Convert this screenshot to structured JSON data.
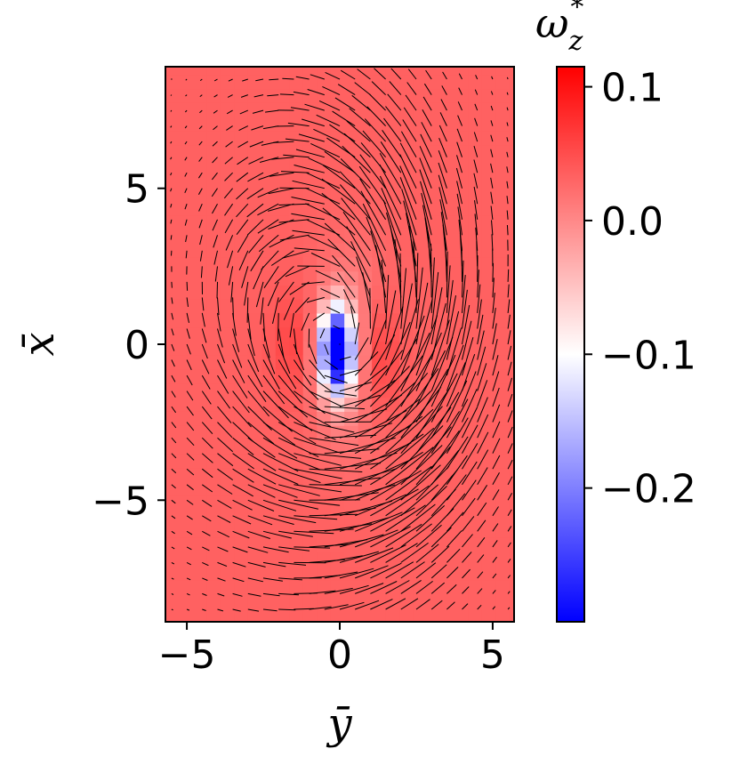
{
  "chart_data": {
    "type": "heatmap",
    "title": "",
    "xlabel": "ȳ",
    "ylabel": "x̄",
    "xlim": [
      -5.7,
      5.7
    ],
    "ylim": [
      -8.9,
      8.9
    ],
    "xticks": [
      -5,
      0,
      5
    ],
    "xtick_labels": [
      "−5",
      "0",
      "5"
    ],
    "yticks": [
      5,
      0,
      -5
    ],
    "ytick_labels": [
      "5",
      "0",
      "−5"
    ],
    "grid": false,
    "colorbar": {
      "label_symbol": "ω",
      "label_sub": "z",
      "label_sup": "*",
      "vmin": -0.3,
      "vmax": 0.115,
      "ticks": [
        0.1,
        0.0,
        -0.1,
        -0.2
      ],
      "tick_labels": [
        "0.1",
        "0.0",
        "−0.1",
        "−0.2"
      ],
      "colormap": [
        "#0000ff",
        "#ffffff",
        "#ff0000"
      ],
      "colormap_center": -0.1
    },
    "background_value": 0.033,
    "vortex_features": [
      {
        "name": "negative core",
        "y": -0.1,
        "x": -0.2,
        "sy": 0.35,
        "sx": 0.9,
        "value": -0.36
      },
      {
        "name": "positive lobe right",
        "y": 1.2,
        "x": -0.4,
        "sy": 0.55,
        "sx": 1.4,
        "value": 0.09
      },
      {
        "name": "positive lobe left",
        "y": -1.5,
        "x": 0.0,
        "sy": 0.5,
        "sx": 1.2,
        "value": 0.06
      },
      {
        "name": "white ring",
        "y": 0.5,
        "x": -0.3,
        "sy": 0.9,
        "sx": 2.0,
        "value": -0.06
      }
    ],
    "vector_field": {
      "grid_spacing": 0.5,
      "extent_y": [
        -5.5,
        5.5
      ],
      "extent_x": [
        -8.5,
        8.5
      ],
      "vortex_center": [
        0.0,
        0.0
      ],
      "vortex_core_radius": 2.3,
      "max_arrow_length": 3.0,
      "arrow_color": "#000000"
    }
  }
}
